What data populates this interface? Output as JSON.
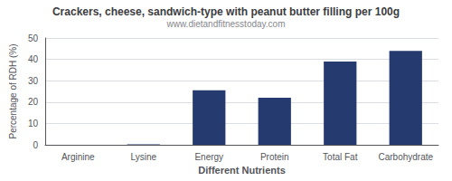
{
  "chart_data": {
    "type": "bar",
    "title": "Crackers, cheese, sandwich-type with peanut butter filling per 100g",
    "subtitle": "www.dietandfitnesstoday.com",
    "xlabel": "Different Nutrients",
    "ylabel": "Percentage of RDH (%)",
    "categories": [
      "Arginine",
      "Lysine",
      "Energy",
      "Protein",
      "Total Fat",
      "Carbohydrate"
    ],
    "values": [
      0.0,
      0.2,
      25.5,
      22.0,
      39.0,
      44.0
    ],
    "color": "#253a6e",
    "ylim": [
      0,
      50
    ],
    "yticks": [
      0,
      10,
      20,
      30,
      40,
      50
    ],
    "grid": true
  }
}
